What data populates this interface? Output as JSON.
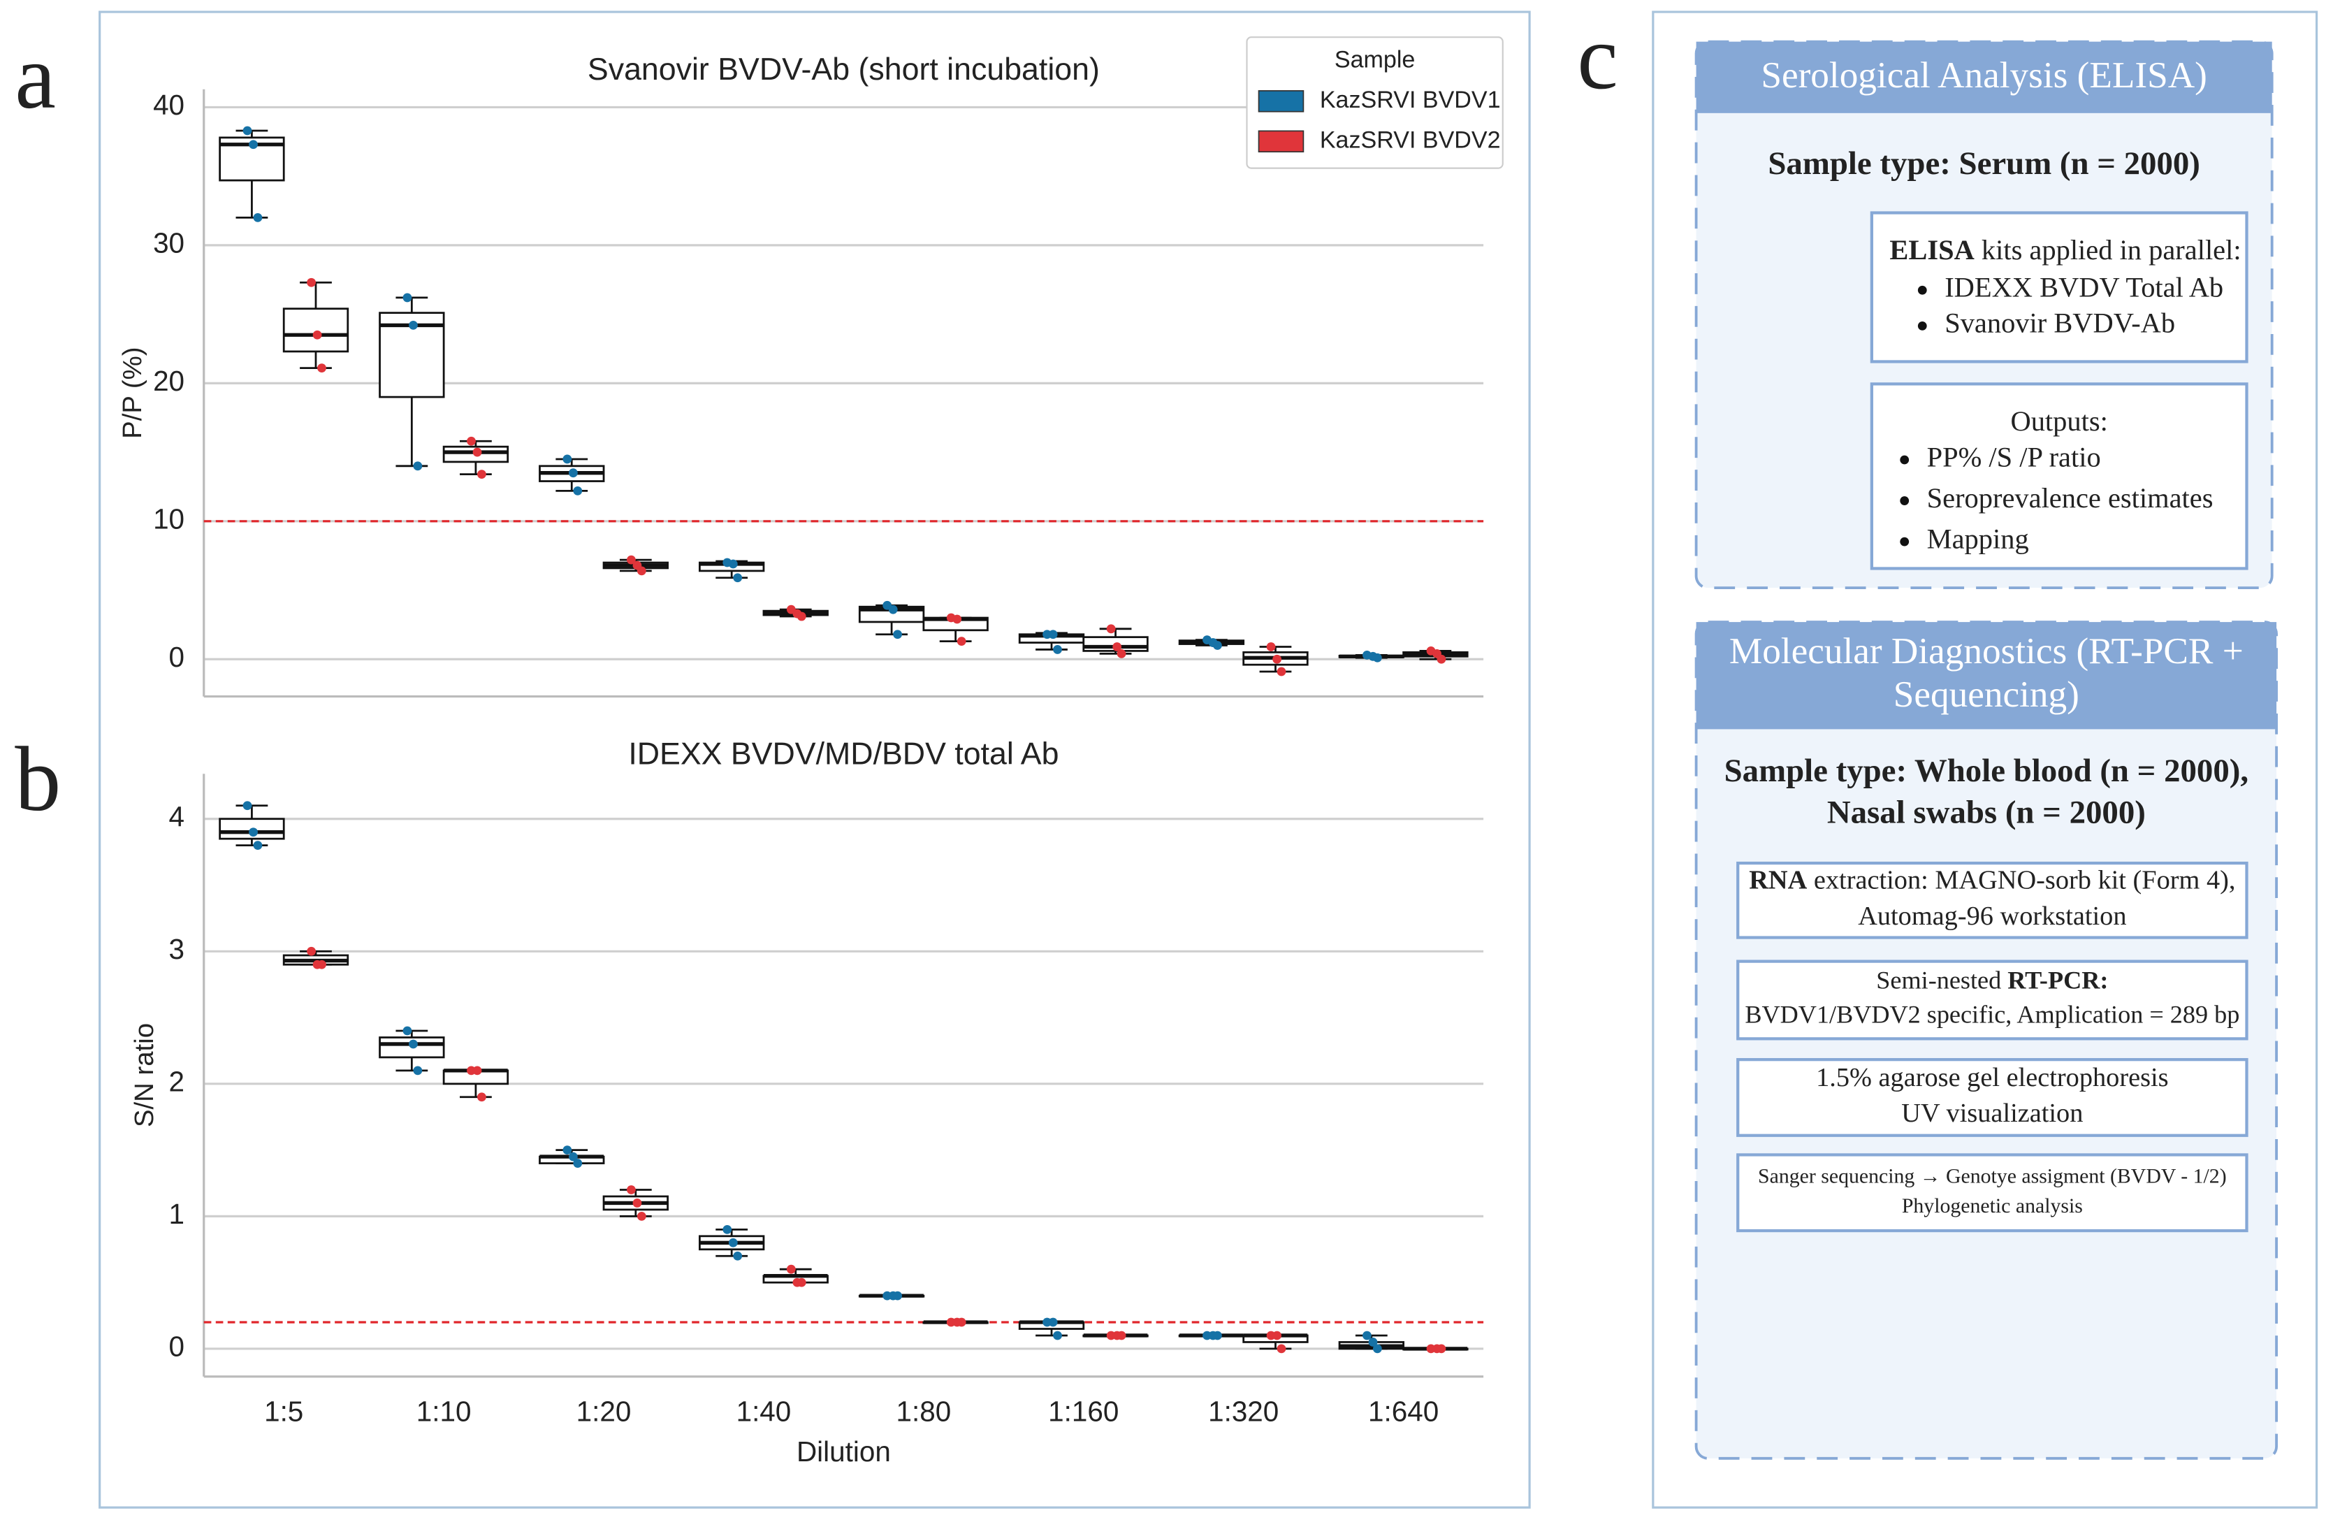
{
  "chart_data": {
    "type": "box",
    "categories": [
      "1:5",
      "1:10",
      "1:20",
      "1:40",
      "1:80",
      "1:160",
      "1:320",
      "1:640"
    ],
    "xlabel": "Dilution",
    "legend_title": "Sample",
    "series": [
      {
        "name": "KazSRVI BVDV1",
        "color": "#1672a6"
      },
      {
        "name": "KazSRVI BVDV2",
        "color": "#e0353a"
      }
    ],
    "subplots": [
      {
        "label": "a",
        "title": "Svanovir BVDV-Ab (short incubation)",
        "ylabel": "P/P (%)",
        "ylim": [
          -2.7,
          41.3
        ],
        "yticks": [
          0,
          10,
          20,
          30,
          40
        ],
        "grid": true,
        "legend": "upper right",
        "threshold": {
          "value": 10,
          "color": "#e0262b"
        },
        "boxes": [
          [
            {
              "min": 32,
              "q1": 34.7,
              "median": 37.3,
              "q3": 37.8,
              "max": 38.3,
              "points": [
                38.3,
                37.3,
                32
              ]
            },
            {
              "min": 14,
              "q1": 19,
              "median": 24.2,
              "q3": 25.1,
              "max": 26.2,
              "points": [
                26.2,
                24.2,
                14
              ]
            },
            {
              "min": 12.2,
              "q1": 12.9,
              "median": 13.5,
              "q3": 14,
              "max": 14.5,
              "points": [
                14.5,
                13.5,
                12.2
              ]
            },
            {
              "min": 5.9,
              "q1": 6.4,
              "median": 6.9,
              "q3": 7,
              "max": 7.1,
              "points": [
                7,
                6.9,
                5.9
              ]
            },
            {
              "min": 1.8,
              "q1": 2.7,
              "median": 3.6,
              "q3": 3.8,
              "max": 3.9,
              "points": [
                3.9,
                3.6,
                1.8
              ]
            },
            {
              "min": 0.7,
              "q1": 1.2,
              "median": 1.7,
              "q3": 1.8,
              "max": 1.9,
              "points": [
                1.8,
                1.8,
                0.7
              ]
            },
            {
              "min": 1,
              "q1": 1.1,
              "median": 1.2,
              "q3": 1.35,
              "max": 1.4,
              "points": [
                1.4,
                1.2,
                1
              ]
            },
            {
              "min": 0.1,
              "q1": 0.15,
              "median": 0.2,
              "q3": 0.25,
              "max": 0.3,
              "points": [
                0.3,
                0.2,
                0.1
              ]
            }
          ],
          [
            {
              "min": 21.1,
              "q1": 22.3,
              "median": 23.5,
              "q3": 25.4,
              "max": 27.3,
              "points": [
                27.3,
                23.5,
                21.1
              ]
            },
            {
              "min": 13.4,
              "q1": 14.3,
              "median": 15,
              "q3": 15.4,
              "max": 15.8,
              "points": [
                15.8,
                15,
                13.4
              ]
            },
            {
              "min": 6.4,
              "q1": 6.6,
              "median": 6.8,
              "q3": 7,
              "max": 7.2,
              "points": [
                7.2,
                6.8,
                6.4
              ]
            },
            {
              "min": 3.1,
              "q1": 3.2,
              "median": 3.35,
              "q3": 3.5,
              "max": 3.6,
              "points": [
                3.6,
                3.3,
                3.1
              ]
            },
            {
              "min": 1.3,
              "q1": 2.1,
              "median": 2.9,
              "q3": 3,
              "max": 3,
              "points": [
                3,
                2.9,
                1.3
              ]
            },
            {
              "min": 0.4,
              "q1": 0.6,
              "median": 0.9,
              "q3": 1.6,
              "max": 2.2,
              "points": [
                2.2,
                0.9,
                0.4
              ]
            },
            {
              "min": -0.9,
              "q1": -0.4,
              "median": 0.1,
              "q3": 0.5,
              "max": 0.9,
              "points": [
                0.9,
                0,
                -0.9
              ]
            },
            {
              "min": 0,
              "q1": 0.2,
              "median": 0.4,
              "q3": 0.5,
              "max": 0.6,
              "points": [
                0.6,
                0.4,
                0
              ]
            }
          ]
        ]
      },
      {
        "label": "b",
        "title": "IDEXX BVDV/MD/BDV total Ab",
        "ylabel": "S/N ratio",
        "ylim": [
          -0.21,
          4.34
        ],
        "yticks": [
          0,
          1,
          2,
          3,
          4
        ],
        "grid": true,
        "threshold": {
          "value": 0.2,
          "color": "#e0262b"
        },
        "boxes": [
          [
            {
              "min": 3.8,
              "q1": 3.85,
              "median": 3.9,
              "q3": 4,
              "max": 4.1,
              "points": [
                4.1,
                3.9,
                3.8
              ]
            },
            {
              "min": 2.1,
              "q1": 2.2,
              "median": 2.3,
              "q3": 2.35,
              "max": 2.4,
              "points": [
                2.4,
                2.3,
                2.1
              ]
            },
            {
              "min": 1.4,
              "q1": 1.4,
              "median": 1.45,
              "q3": 1.45,
              "max": 1.5,
              "points": [
                1.5,
                1.45,
                1.4
              ]
            },
            {
              "min": 0.7,
              "q1": 0.75,
              "median": 0.8,
              "q3": 0.85,
              "max": 0.9,
              "points": [
                0.9,
                0.8,
                0.7
              ]
            },
            {
              "min": 0.4,
              "q1": 0.4,
              "median": 0.4,
              "q3": 0.4,
              "max": 0.4,
              "points": [
                0.4,
                0.4,
                0.4
              ]
            },
            {
              "min": 0.1,
              "q1": 0.15,
              "median": 0.2,
              "q3": 0.2,
              "max": 0.2,
              "points": [
                0.2,
                0.2,
                0.1
              ]
            },
            {
              "min": 0.1,
              "q1": 0.1,
              "median": 0.1,
              "q3": 0.1,
              "max": 0.1,
              "points": [
                0.1,
                0.1,
                0.1
              ]
            },
            {
              "min": 0,
              "q1": 0,
              "median": 0.02,
              "q3": 0.05,
              "max": 0.1,
              "points": [
                0.1,
                0.05,
                0
              ]
            }
          ],
          [
            {
              "min": 2.9,
              "q1": 2.9,
              "median": 2.93,
              "q3": 2.97,
              "max": 3,
              "points": [
                3,
                2.9,
                2.9
              ]
            },
            {
              "min": 1.9,
              "q1": 2,
              "median": 2.1,
              "q3": 2.1,
              "max": 2.1,
              "points": [
                2.1,
                2.1,
                1.9
              ]
            },
            {
              "min": 1,
              "q1": 1.05,
              "median": 1.1,
              "q3": 1.15,
              "max": 1.2,
              "points": [
                1.2,
                1.1,
                1
              ]
            },
            {
              "min": 0.5,
              "q1": 0.5,
              "median": 0.55,
              "q3": 0.55,
              "max": 0.6,
              "points": [
                0.6,
                0.5,
                0.5
              ]
            },
            {
              "min": 0.2,
              "q1": 0.2,
              "median": 0.2,
              "q3": 0.2,
              "max": 0.2,
              "points": [
                0.2,
                0.2,
                0.2
              ]
            },
            {
              "min": 0.1,
              "q1": 0.1,
              "median": 0.1,
              "q3": 0.1,
              "max": 0.1,
              "points": [
                0.1,
                0.1,
                0.1
              ]
            },
            {
              "min": 0,
              "q1": 0.05,
              "median": 0.1,
              "q3": 0.1,
              "max": 0.1,
              "points": [
                0.1,
                0.1,
                0
              ]
            },
            {
              "min": 0,
              "q1": 0,
              "median": 0,
              "q3": 0,
              "max": 0,
              "points": [
                0,
                0,
                0
              ]
            }
          ]
        ]
      }
    ]
  },
  "diagram": {
    "label": "c",
    "sections": [
      {
        "title": [
          "Serological Analysis (ELISA)"
        ],
        "sample_type": [
          "Sample type: Serum (n = 2000)"
        ],
        "boxes": [
          {
            "lines": [
              [
                {
                  "text": "ELISA",
                  "bold": true
                },
                {
                  "text": " kits applied in parallel:"
                }
              ]
            ],
            "bullets": [
              "IDEXX BVDV Total Ab",
              "Svanovir BVDV-Ab"
            ]
          },
          {
            "lines": [
              [
                {
                  "text": "Outputs:"
                }
              ]
            ],
            "bullets": [
              "PP% /S /P ratio",
              "Seroprevalence estimates",
              "Mapping"
            ]
          }
        ]
      },
      {
        "title": [
          "Molecular Diagnostics (RT-PCR +",
          "Sequencing)"
        ],
        "sample_type": [
          "Sample type: Whole blood (n = 2000),",
          "Nasal swabs (n = 2000)"
        ],
        "boxes": [
          {
            "lines": [
              [
                {
                  "text": "RNA",
                  "bold": true
                },
                {
                  "text": " extraction: MAGNO-sorb kit (Form 4),"
                }
              ],
              [
                {
                  "text": "Automag-96 workstation"
                }
              ]
            ]
          },
          {
            "lines": [
              [
                {
                  "text": "Semi-nested "
                },
                {
                  "text": "RT-PCR:",
                  "bold": true
                }
              ],
              [
                {
                  "text": "BVDV1/BVDV2 specific, Amplication = 289 bp"
                }
              ]
            ]
          },
          {
            "lines": [
              [
                {
                  "text": "1.5% agarose gel electrophoresis"
                }
              ],
              [
                {
                  "text": "UV visualization"
                }
              ]
            ]
          },
          {
            "lines": [
              [
                {
                  "text": "Sanger sequencing → Genotye assigment (BVDV - 1/2)"
                }
              ],
              [
                {
                  "text": "Phylogenetic analysis"
                }
              ]
            ]
          }
        ]
      }
    ]
  }
}
